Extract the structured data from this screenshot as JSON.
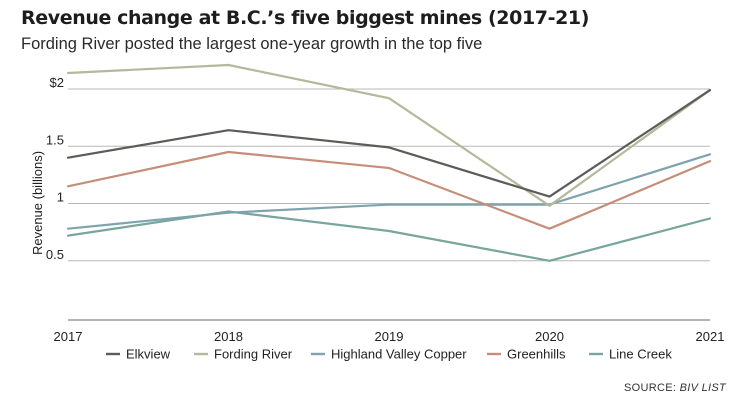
{
  "header": {
    "title": "Revenue change at B.C.’s five biggest mines (2017-21)",
    "subtitle": "Fording River posted the largest one-year growth in the top five"
  },
  "source": {
    "prefix": "SOURCE: ",
    "name": "BIV LIST"
  },
  "chart_data": {
    "type": "line",
    "title": "Revenue change at B.C.’s five biggest mines (2017-21)",
    "subtitle": "Fording River posted the largest one-year growth in the top five",
    "xlabel": "",
    "ylabel": "Revenue (billions)",
    "x": [
      "2017",
      "2018",
      "2019",
      "2020",
      "2021"
    ],
    "ylim": [
      0,
      2
    ],
    "yticks": [
      {
        "value": 2,
        "label": "$2"
      },
      {
        "value": 1.5,
        "label": "1.5"
      },
      {
        "value": 1,
        "label": "1"
      },
      {
        "value": 0.5,
        "label": "0.5"
      }
    ],
    "grid": true,
    "legend_position": "bottom",
    "series": [
      {
        "name": "Elkview",
        "color": "#5e5c58",
        "values": [
          1.4,
          1.64,
          1.49,
          1.06,
          1.99
        ]
      },
      {
        "name": "Fording River",
        "color": "#b4b99b",
        "values": [
          2.14,
          2.21,
          1.92,
          0.98,
          1.99
        ]
      },
      {
        "name": "Highland Valley Copper",
        "color": "#7ea3ad",
        "values": [
          0.78,
          0.92,
          0.99,
          0.99,
          1.43
        ]
      },
      {
        "name": "Greenhills",
        "color": "#c58e7a",
        "values": [
          1.15,
          1.45,
          1.31,
          0.78,
          1.37
        ]
      },
      {
        "name": "Line Creek",
        "color": "#78a69b",
        "values": [
          0.72,
          0.93,
          0.76,
          0.5,
          0.87
        ]
      }
    ]
  }
}
